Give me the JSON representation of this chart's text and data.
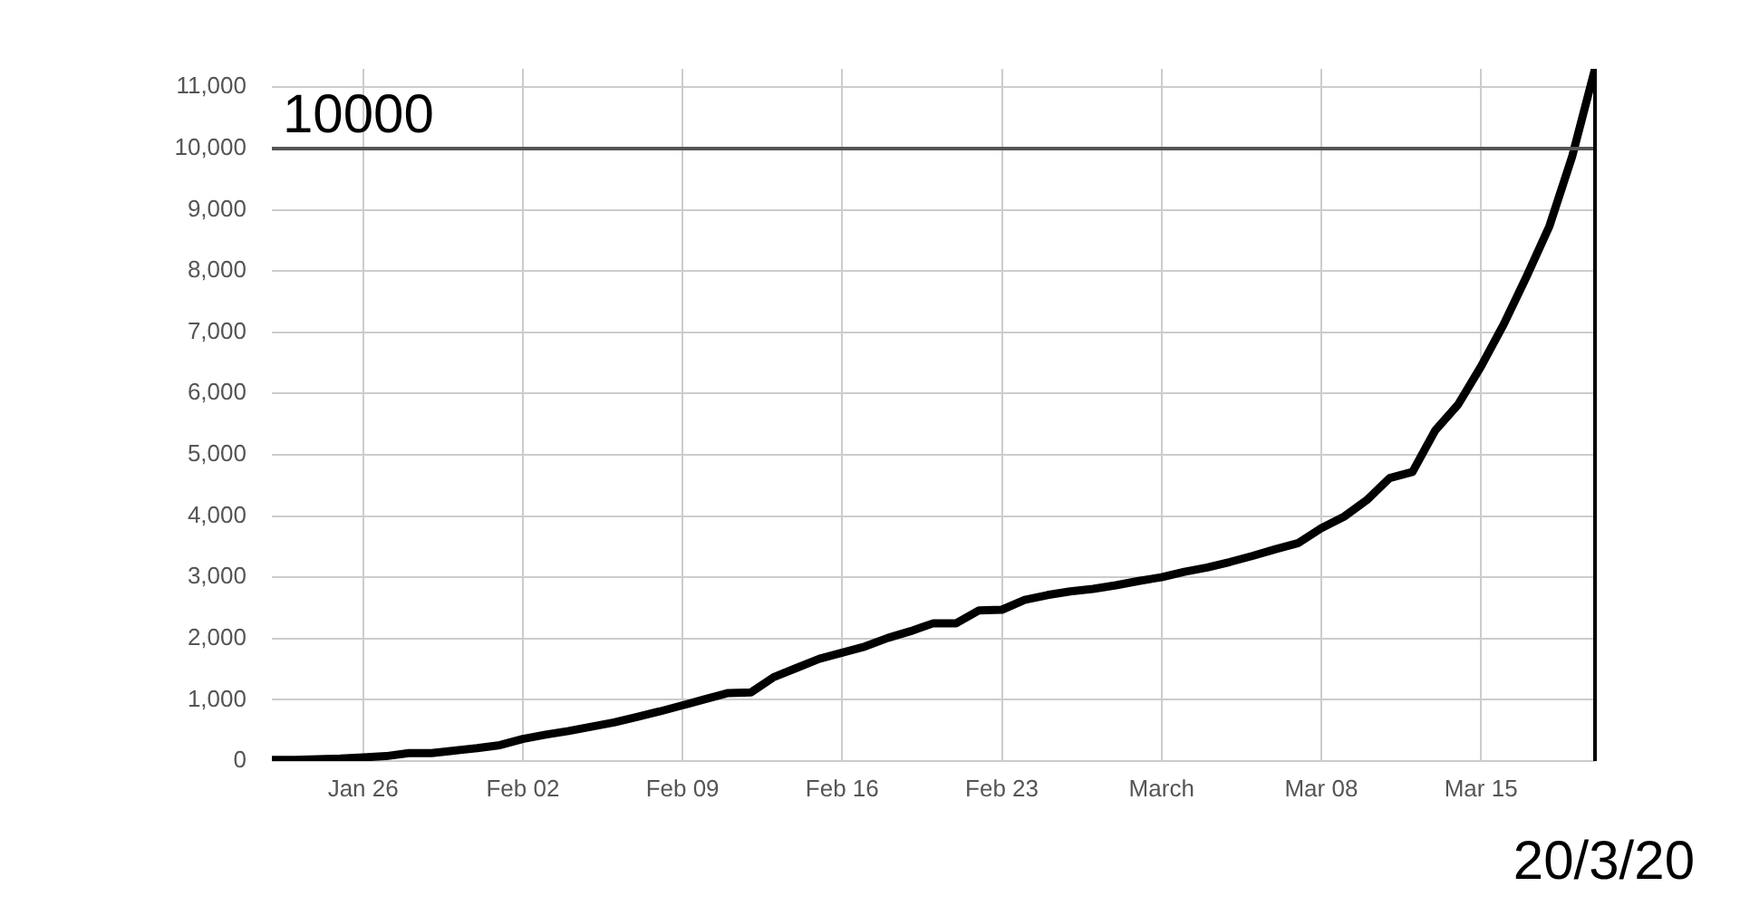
{
  "chart_data": {
    "type": "line",
    "x": [
      "--01-22",
      "--01-23",
      "--01-24",
      "--01-25",
      "--01-26",
      "--01-27",
      "--01-28",
      "--01-29",
      "--01-30",
      "--01-31",
      "--02-01",
      "--02-02",
      "--02-03",
      "--02-04",
      "--02-05",
      "--02-06",
      "--02-07",
      "--02-08",
      "--02-09",
      "--02-10",
      "--02-11",
      "--02-12",
      "--02-13",
      "--02-14",
      "--02-15",
      "--02-16",
      "--02-17",
      "--02-18",
      "--02-19",
      "--02-20",
      "--02-21",
      "--02-22",
      "--02-23",
      "--02-24",
      "--02-25",
      "--02-26",
      "--02-27",
      "--02-28",
      "--02-29",
      "--03-01",
      "--03-02",
      "--03-03",
      "--03-04",
      "--03-05",
      "--03-06",
      "--03-07",
      "--03-08",
      "--03-09",
      "--03-10",
      "--03-11",
      "--03-12",
      "--03-13",
      "--03-14",
      "--03-15",
      "--03-16",
      "--03-17",
      "--03-18",
      "--03-19",
      "--03-20"
    ],
    "series": [
      {
        "color": "#000000",
        "values": [
          20,
          20,
          30,
          40,
          60,
          80,
          130,
          130,
          170,
          210,
          260,
          360,
          430,
          490,
          560,
          630,
          720,
          810,
          910,
          1010,
          1110,
          1120,
          1370,
          1520,
          1670,
          1770,
          1870,
          2010,
          2120,
          2250,
          2250,
          2460,
          2470,
          2630,
          2710,
          2770,
          2810,
          2870,
          2940,
          3000,
          3090,
          3160,
          3250,
          3350,
          3460,
          3560,
          3800,
          3990,
          4260,
          4620,
          4720,
          5400,
          5820,
          6440,
          7130,
          7910,
          8730,
          9870,
          11300
        ]
      }
    ],
    "xlim": [
      "--01-22",
      "--03-20"
    ],
    "xticks": [
      {
        "value": "--01-26",
        "label": "Jan 26"
      },
      {
        "value": "--02-02",
        "label": "Feb 02"
      },
      {
        "value": "--02-09",
        "label": "Feb 09"
      },
      {
        "value": "--02-16",
        "label": "Feb 16"
      },
      {
        "value": "--02-23",
        "label": "Feb 23"
      },
      {
        "value": "--03-01",
        "label": "March"
      },
      {
        "value": "--03-08",
        "label": "Mar 08"
      },
      {
        "value": "--03-15",
        "label": "Mar 15"
      }
    ],
    "ylim": [
      0,
      11300
    ],
    "yticks": [
      0,
      {
        "value": 1000,
        "label": "1,000"
      },
      {
        "value": 2000,
        "label": "2,000"
      },
      {
        "value": 3000,
        "label": "3,000"
      },
      {
        "value": 4000,
        "label": "4,000"
      },
      {
        "value": 5000,
        "label": "5,000"
      },
      {
        "value": 6000,
        "label": "6,000"
      },
      {
        "value": 7000,
        "label": "7,000"
      },
      {
        "value": 8000,
        "label": "8,000"
      },
      {
        "value": 9000,
        "label": "9,000"
      },
      {
        "value": 10000,
        "label": "10,000"
      },
      {
        "value": 11000,
        "label": "11,000"
      }
    ],
    "grid": true,
    "marker": "none",
    "line_style": "solid",
    "legend": false,
    "ref_lines": [
      {
        "axis": "y",
        "value": 10000,
        "label": "10000",
        "color": "#555555"
      },
      {
        "axis": "x",
        "value": "--03-20",
        "label": "20/3/20",
        "color": "#000000"
      }
    ]
  }
}
